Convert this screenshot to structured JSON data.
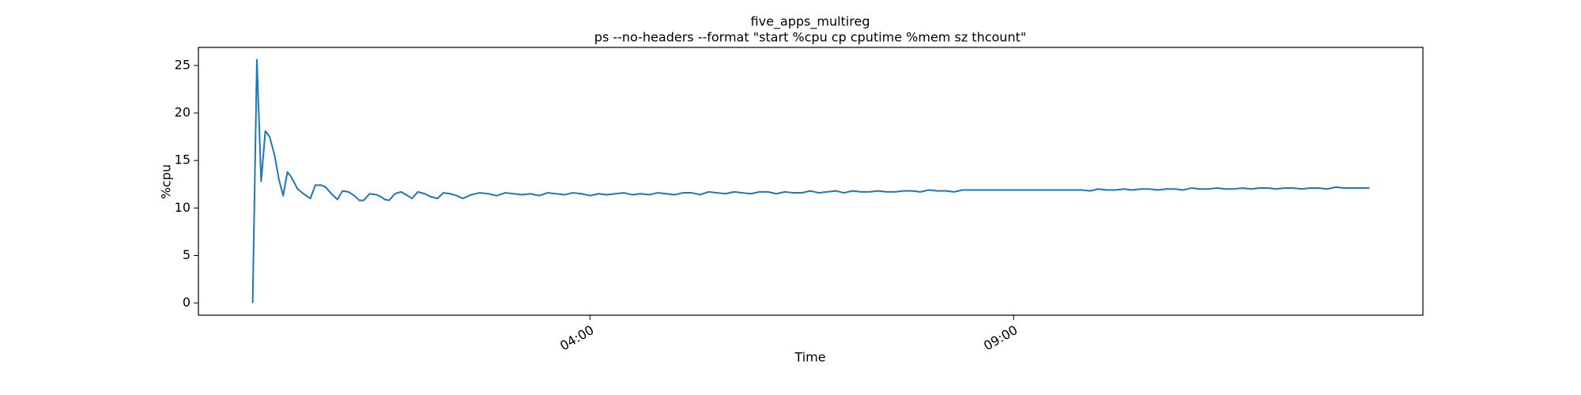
{
  "chart_data": {
    "type": "line",
    "title": "five_apps_multireg",
    "subtitle": "ps --no-headers --format \"start %cpu cp cputime %mem sz thcount\"",
    "x_label": "Time",
    "y_label": "%cpu",
    "color": "#1f77b4",
    "x": [
      0.02,
      0.07,
      0.12,
      0.17,
      0.22,
      0.28,
      0.33,
      0.38,
      0.43,
      0.48,
      0.55,
      0.62,
      0.7,
      0.76,
      0.83,
      0.88,
      0.95,
      1.02,
      1.08,
      1.15,
      1.22,
      1.28,
      1.33,
      1.4,
      1.48,
      1.53,
      1.58,
      1.63,
      1.7,
      1.77,
      1.85,
      1.9,
      1.97,
      2.05,
      2.12,
      2.2,
      2.27,
      2.35,
      2.43,
      2.5,
      2.6,
      2.7,
      2.8,
      2.9,
      3.0,
      3.1,
      3.2,
      3.3,
      3.4,
      3.5,
      3.6,
      3.7,
      3.8,
      3.9,
      4.0,
      4.1,
      4.2,
      4.3,
      4.4,
      4.5,
      4.6,
      4.7,
      4.8,
      4.9,
      5.0,
      5.1,
      5.2,
      5.3,
      5.4,
      5.5,
      5.6,
      5.7,
      5.8,
      5.9,
      6.0,
      6.1,
      6.2,
      6.3,
      6.4,
      6.5,
      6.6,
      6.7,
      6.8,
      6.9,
      7.0,
      7.1,
      7.2,
      7.3,
      7.4,
      7.5,
      7.6,
      7.7,
      7.8,
      7.9,
      8.0,
      8.1,
      8.2,
      8.3,
      8.4,
      8.5,
      9.7,
      9.8,
      9.9,
      10.0,
      10.1,
      10.2,
      10.3,
      10.4,
      10.5,
      10.6,
      10.7,
      10.8,
      10.9,
      11.0,
      11.1,
      11.2,
      11.3,
      11.4,
      11.5,
      11.6,
      11.7,
      11.8,
      11.9,
      12.0,
      12.1,
      12.2,
      12.3,
      12.4,
      12.5,
      12.6,
      12.7,
      12.8,
      12.9,
      13.0,
      13.1,
      13.2
    ],
    "values": [
      0,
      25.6,
      12.8,
      18.1,
      17.5,
      15.5,
      13,
      11.3,
      13.8,
      13.2,
      12,
      11.5,
      11,
      12.4,
      12.4,
      12.2,
      11.5,
      10.9,
      11.8,
      11.7,
      11.3,
      10.8,
      10.8,
      11.5,
      11.4,
      11.2,
      10.9,
      10.8,
      11.5,
      11.7,
      11.3,
      11.0,
      11.7,
      11.5,
      11.2,
      11.0,
      11.6,
      11.5,
      11.3,
      11.0,
      11.4,
      11.6,
      11.5,
      11.3,
      11.6,
      11.5,
      11.4,
      11.5,
      11.3,
      11.6,
      11.5,
      11.4,
      11.6,
      11.5,
      11.3,
      11.5,
      11.4,
      11.5,
      11.6,
      11.4,
      11.5,
      11.4,
      11.6,
      11.5,
      11.4,
      11.6,
      11.6,
      11.4,
      11.7,
      11.6,
      11.5,
      11.7,
      11.6,
      11.5,
      11.7,
      11.7,
      11.5,
      11.7,
      11.6,
      11.6,
      11.8,
      11.6,
      11.7,
      11.8,
      11.6,
      11.8,
      11.7,
      11.7,
      11.8,
      11.7,
      11.7,
      11.8,
      11.8,
      11.7,
      11.9,
      11.8,
      11.8,
      11.7,
      11.9,
      11.9,
      11.9,
      11.9,
      11.8,
      12.0,
      11.9,
      11.9,
      12.0,
      11.9,
      12.0,
      12.0,
      11.9,
      12.0,
      12.0,
      11.9,
      12.1,
      12.0,
      12.0,
      12.1,
      12.0,
      12.0,
      12.1,
      12.0,
      12.1,
      12.1,
      12.0,
      12.1,
      12.1,
      12.0,
      12.1,
      12.1,
      12.0,
      12.2,
      12.1,
      12.1,
      12.1,
      12.1
    ],
    "xlim": [
      -0.62,
      13.83
    ],
    "xticks": [
      {
        "value": 4,
        "label": "04:00"
      },
      {
        "value": 9,
        "label": "09:00"
      }
    ],
    "ylim": [
      -1.28,
      26.9
    ],
    "yticks": [
      0,
      5,
      10,
      15,
      20,
      25
    ]
  }
}
